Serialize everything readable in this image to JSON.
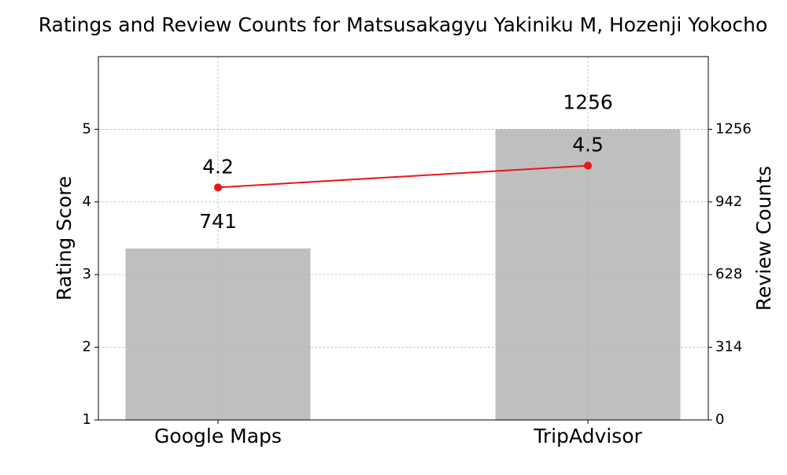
{
  "chart_data": {
    "type": "combo",
    "title": "Ratings and Review Counts for Matsusakagyu Yakiniku M, Hozenji Yokocho",
    "categories": [
      "Google Maps",
      "TripAdvisor"
    ],
    "ylabel": "Rating Score",
    "y2label": "Review Counts",
    "ylim": [
      1,
      6
    ],
    "yticks": [
      1,
      2,
      3,
      4,
      5
    ],
    "y2lim": [
      0,
      1570
    ],
    "y2ticks": [
      0,
      314,
      628,
      942,
      1256
    ],
    "grid": true,
    "series": [
      {
        "type": "bar",
        "axis": "y2",
        "color": "#bfbfbf",
        "values": [
          741,
          1256
        ]
      },
      {
        "type": "line",
        "axis": "y",
        "color": "#e8161a",
        "values": [
          4.2,
          4.5
        ]
      }
    ]
  }
}
